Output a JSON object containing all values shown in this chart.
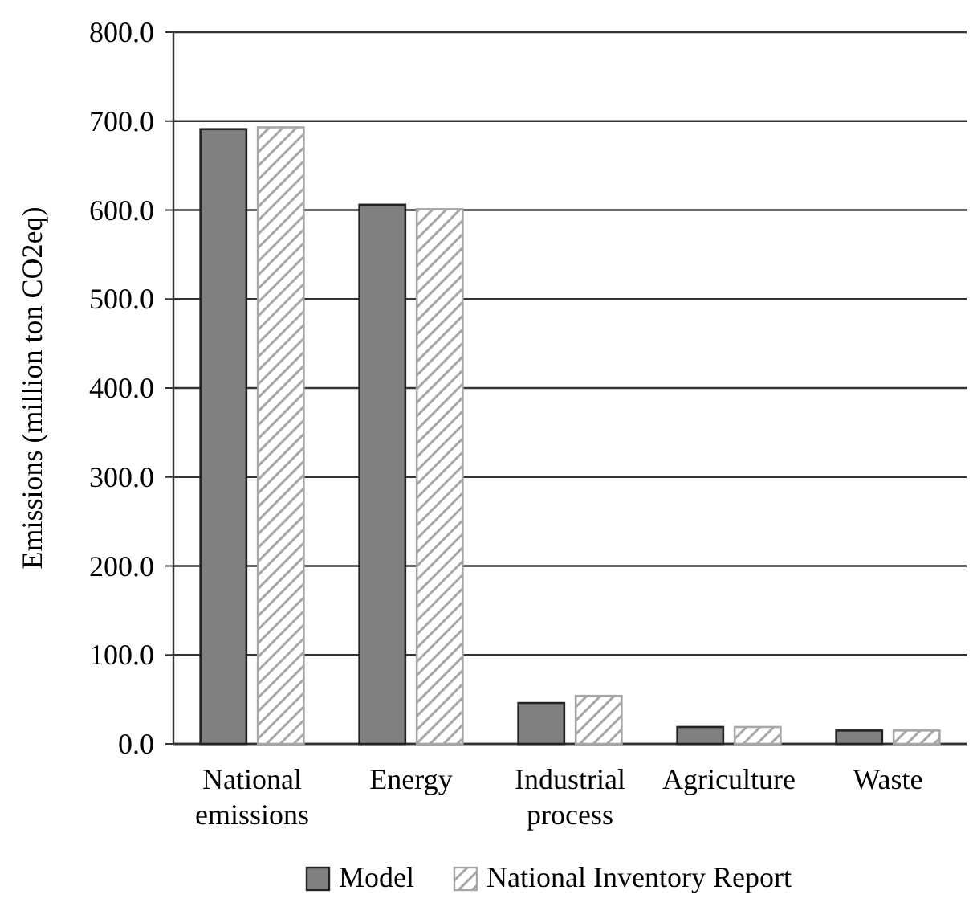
{
  "chart_data": {
    "type": "bar",
    "ylabel": "Emissions (million ton CO2eq)",
    "categories": [
      "National emissions",
      "Energy",
      "Industrial process",
      "Agriculture",
      "Waste"
    ],
    "series": [
      {
        "name": "Model",
        "color": "#808080",
        "values": [
          691,
          606,
          46,
          19,
          15
        ]
      },
      {
        "name": "National Inventory Report",
        "color": "#a6a6a6",
        "values": [
          693,
          601,
          54,
          19,
          15
        ]
      }
    ],
    "ylim": [
      0,
      800
    ],
    "yticks": [
      {
        "value": 0,
        "label": "0.0"
      },
      {
        "value": 100,
        "label": "100.0"
      },
      {
        "value": 200,
        "label": "200.0"
      },
      {
        "value": 300,
        "label": "300.0"
      },
      {
        "value": 400,
        "label": "400.0"
      },
      {
        "value": 500,
        "label": "500.0"
      },
      {
        "value": 600,
        "label": "600.0"
      },
      {
        "value": 700,
        "label": "700.0"
      },
      {
        "value": 800,
        "label": "800.0"
      }
    ],
    "grid": "y",
    "legend": "bottom"
  }
}
